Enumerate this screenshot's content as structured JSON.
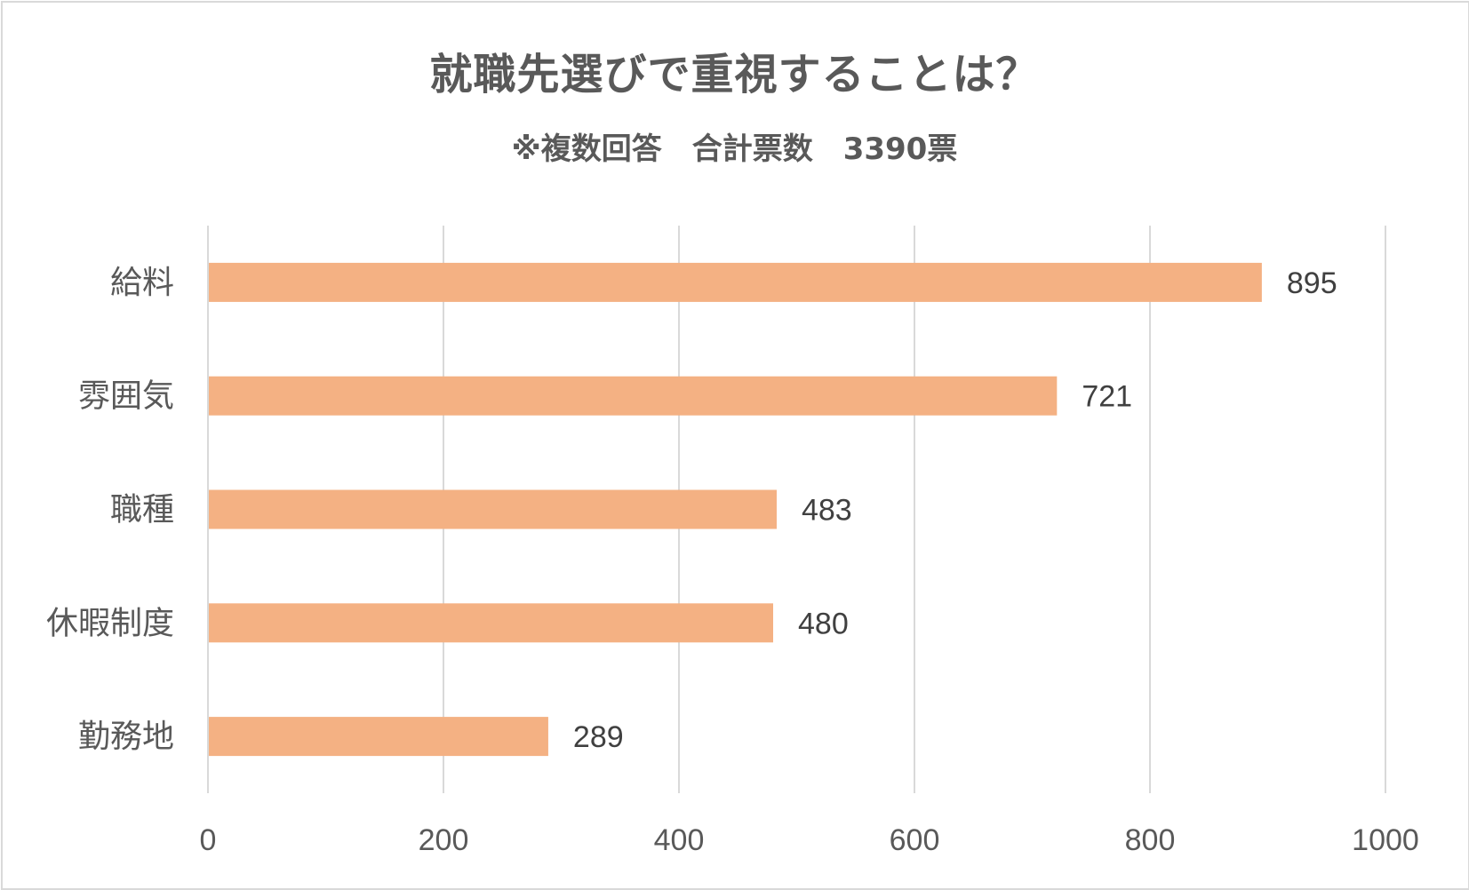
{
  "chart_data": {
    "type": "bar",
    "orientation": "horizontal",
    "title": "就職先選びで重視することは？",
    "subtitle": "※複数回答　合計票数　3390票",
    "categories": [
      "給料",
      "雰囲気",
      "職種",
      "休暇制度",
      "勤務地"
    ],
    "values": [
      895,
      721,
      483,
      480,
      289
    ],
    "xlim": [
      0,
      1000
    ],
    "xticks": [
      0,
      200,
      400,
      600,
      800,
      1000
    ],
    "grid": true,
    "legend": "none",
    "colors": {
      "bar": "#f4b183",
      "grid": "#d9d9d9",
      "text": "#595959",
      "data_label": "#404040"
    }
  }
}
